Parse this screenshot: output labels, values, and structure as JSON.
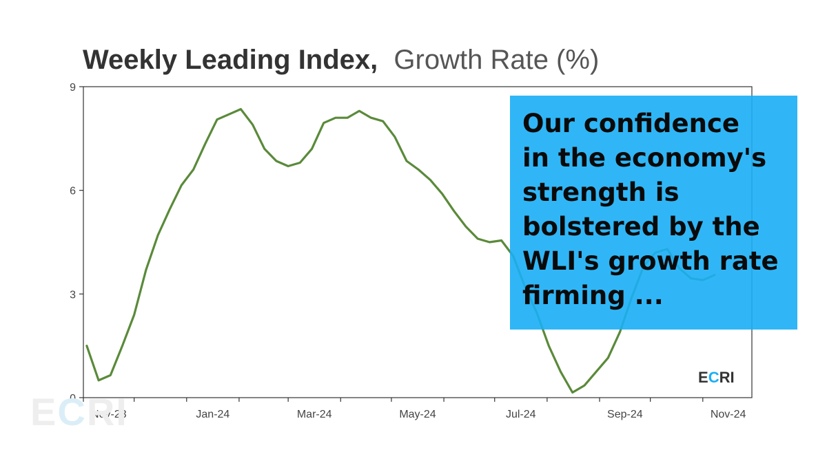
{
  "title": {
    "bold": "Weekly Leading Index,",
    "light": "Growth Rate (%)"
  },
  "logo": {
    "text_pre": "E",
    "text_accent": "C",
    "text_post": "RI",
    "accent_color": "#1aaef5"
  },
  "watermark": {
    "text_pre": "E",
    "text_accent": "C",
    "text_post": "RI"
  },
  "callout": {
    "lines": [
      "Our confidence",
      "in the economy's",
      "strength is",
      "bolstered by the",
      "WLI's growth rate",
      "firming ..."
    ],
    "background": "#1aaef5"
  },
  "chart_data": {
    "type": "line",
    "title": "Weekly Leading Index, Growth Rate (%)",
    "xlabel": "",
    "ylabel": "",
    "ylim": [
      0,
      9
    ],
    "y_ticks": [
      0,
      3,
      6,
      9
    ],
    "x_tick_labels": [
      "Nov-23",
      "Jan-24",
      "Mar-24",
      "May-24",
      "Jul-24",
      "Sep-24",
      "Nov-24"
    ],
    "x_range": [
      "2023-11-01",
      "2024-11-30"
    ],
    "grid": false,
    "line_color": "#5a8a3a",
    "series": [
      {
        "x": [
          "2023-11-03",
          "2023-11-10",
          "2023-11-17",
          "2023-11-24",
          "2023-12-01",
          "2023-12-08",
          "2023-12-15",
          "2023-12-22",
          "2023-12-29",
          "2024-01-05",
          "2024-01-12",
          "2024-01-19",
          "2024-01-26",
          "2024-02-02",
          "2024-02-09",
          "2024-02-16",
          "2024-02-23",
          "2024-03-01",
          "2024-03-08",
          "2024-03-15",
          "2024-03-22",
          "2024-03-29",
          "2024-04-05",
          "2024-04-12",
          "2024-04-19",
          "2024-04-26",
          "2024-05-03",
          "2024-05-10",
          "2024-05-17",
          "2024-05-24",
          "2024-05-31",
          "2024-06-07",
          "2024-06-14",
          "2024-06-21",
          "2024-06-28",
          "2024-07-05",
          "2024-07-12",
          "2024-07-19",
          "2024-07-26",
          "2024-08-02",
          "2024-08-09",
          "2024-08-16",
          "2024-08-23",
          "2024-08-30",
          "2024-09-06",
          "2024-09-13",
          "2024-09-20",
          "2024-09-27",
          "2024-10-04",
          "2024-10-11",
          "2024-10-18",
          "2024-10-25",
          "2024-11-01",
          "2024-11-08"
        ],
        "values": [
          1.5,
          0.5,
          0.65,
          1.5,
          2.4,
          3.7,
          4.7,
          5.45,
          6.15,
          6.6,
          7.35,
          8.05,
          8.2,
          8.35,
          7.9,
          7.2,
          6.85,
          6.7,
          6.8,
          7.2,
          7.95,
          8.1,
          8.1,
          8.3,
          8.1,
          8.0,
          7.55,
          6.85,
          6.6,
          6.3,
          5.9,
          5.4,
          4.95,
          4.6,
          4.5,
          4.55,
          4.1,
          3.2,
          2.45,
          1.5,
          0.75,
          0.15,
          0.35,
          0.75,
          1.15,
          1.9,
          2.9,
          3.8,
          4.2,
          4.3,
          3.75,
          3.45,
          3.4,
          3.55
        ]
      }
    ]
  }
}
